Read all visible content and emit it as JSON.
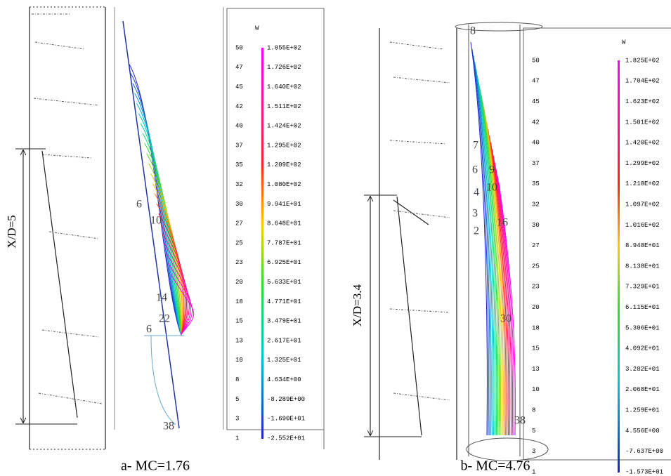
{
  "panels": [
    {
      "caption": "a- MC=1.76",
      "dimension_label": "X/D=5",
      "legend": {
        "title": "W",
        "levels": [
          "50",
          "47",
          "45",
          "42",
          "40",
          "37",
          "35",
          "32",
          "30",
          "27",
          "25",
          "23",
          "20",
          "18",
          "15",
          "13",
          "10",
          "8",
          "5",
          "3",
          "1"
        ],
        "values": [
          "1.855E+02",
          "1.726E+02",
          "1.640E+02",
          "1.511E+02",
          "1.424E+02",
          "1.295E+02",
          "1.209E+02",
          "1.080E+02",
          "9.941E+01",
          "8.648E+01",
          "7.787E+01",
          "6.925E+01",
          "5.633E+01",
          "4.771E+01",
          "3.479E+01",
          "2.617E+01",
          "1.325E+01",
          "4.634E+00",
          "-8.289E+00",
          "-1.690E+01",
          "-2.552E+01"
        ]
      },
      "contour_labels": [
        "6",
        "10",
        "14",
        "22",
        "6",
        "38"
      ]
    },
    {
      "caption": "b- MC=4.76",
      "dimension_label": "X/D=3.4",
      "legend": {
        "title": "W",
        "levels": [
          "50",
          "47",
          "45",
          "42",
          "40",
          "37",
          "35",
          "32",
          "30",
          "27",
          "25",
          "23",
          "20",
          "18",
          "15",
          "13",
          "10",
          "8",
          "5",
          "3",
          "1"
        ],
        "values": [
          "1.825E+02",
          "1.704E+02",
          "1.623E+02",
          "1.501E+02",
          "1.420E+02",
          "1.299E+02",
          "1.218E+02",
          "1.097E+02",
          "1.016E+02",
          "8.948E+01",
          "8.138E+01",
          "7.329E+01",
          "6.115E+01",
          "5.306E+01",
          "4.092E+01",
          "3.282E+01",
          "2.068E+01",
          "1.259E+01",
          "4.556E+00",
          "-7.637E+00",
          "-1.573E+01"
        ]
      },
      "contour_labels": [
        "8",
        "7",
        "6",
        "9",
        "4",
        "10",
        "3",
        "16",
        "2",
        "30",
        "38"
      ]
    }
  ]
}
